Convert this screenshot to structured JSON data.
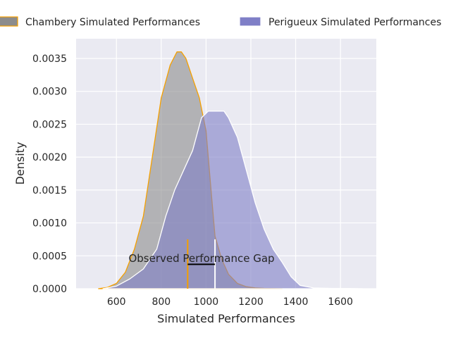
{
  "chart_data": {
    "type": "area",
    "xlabel": "Simulated Performances",
    "ylabel": "Density",
    "xlim": [
      420,
      1760
    ],
    "ylim": [
      0,
      0.0038
    ],
    "xticks": [
      "600",
      "800",
      "1000",
      "1200",
      "1400",
      "1600"
    ],
    "xtick_values": [
      600,
      800,
      1000,
      1200,
      1400,
      1600
    ],
    "yticks": [
      "0.0000",
      "0.0005",
      "0.0010",
      "0.0015",
      "0.0020",
      "0.0025",
      "0.0030",
      "0.0035"
    ],
    "ytick_values": [
      0,
      0.0005,
      0.001,
      0.0015,
      0.002,
      0.0025,
      0.003,
      0.0035
    ],
    "grid": true,
    "legend_placement": "top",
    "series": [
      {
        "name": "Chambery Simulated Performances",
        "fill": "#8c8c8c",
        "edge": "#f5a000",
        "x": [
          520,
          560,
          600,
          640,
          680,
          720,
          760,
          800,
          840,
          870,
          890,
          910,
          940,
          970,
          1000,
          1020,
          1040,
          1070,
          1100,
          1140,
          1180,
          1220,
          1260,
          1300,
          1340
        ],
        "y": [
          0.0,
          2e-05,
          8e-05,
          0.00025,
          0.0006,
          0.0011,
          0.002,
          0.0029,
          0.0034,
          0.0036,
          0.0036,
          0.0035,
          0.0032,
          0.0029,
          0.0024,
          0.0016,
          0.0008,
          0.00045,
          0.00022,
          8e-05,
          3e-05,
          1.2e-05,
          5e-06,
          2e-06,
          0.0
        ]
      },
      {
        "name": "Perigueux Simulated Performances",
        "fill": "#7f7fc7",
        "edge": "#ffffff",
        "x": [
          540,
          600,
          660,
          720,
          780,
          820,
          860,
          900,
          940,
          980,
          1010,
          1040,
          1060,
          1080,
          1100,
          1140,
          1180,
          1220,
          1260,
          1300,
          1340,
          1380,
          1420,
          1480,
          1560,
          1640,
          1700
        ],
        "y": [
          0.0,
          4e-05,
          0.00015,
          0.0003,
          0.0006,
          0.0011,
          0.0015,
          0.0018,
          0.0021,
          0.0026,
          0.0027,
          0.0027,
          0.0027,
          0.0027,
          0.0026,
          0.0023,
          0.0018,
          0.0013,
          0.0009,
          0.0006,
          0.0004,
          0.00018,
          5e-05,
          1.2e-05,
          5e-06,
          3e-06,
          0.0
        ]
      }
    ],
    "markers": [
      {
        "name": "chambery-observed-marker",
        "x": 918,
        "y_top": 0.00075,
        "color": "#f5a000"
      },
      {
        "name": "perigueux-observed-marker",
        "x": 1040,
        "y_top": 0.00075,
        "color": "#ffffff"
      }
    ],
    "gap_line": {
      "x_start": 918,
      "x_end": 1040,
      "y": 0.00037
    },
    "annotation": {
      "text": "Observed Performance Gap",
      "x": 980,
      "y": 0.00046
    }
  }
}
